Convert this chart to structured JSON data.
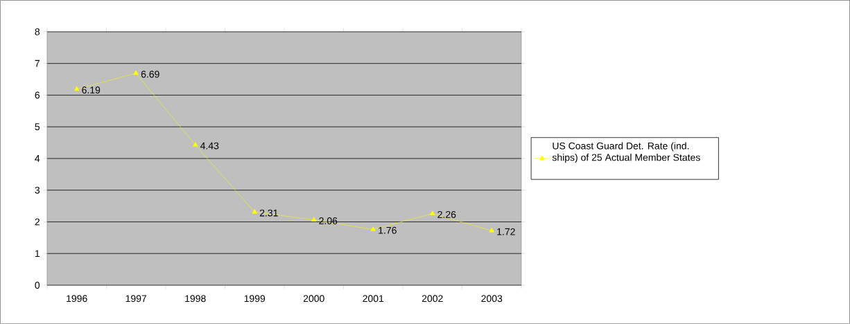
{
  "chart_data": {
    "type": "line",
    "categories": [
      "1996",
      "1997",
      "1998",
      "1999",
      "2000",
      "2001",
      "2002",
      "2003"
    ],
    "series": [
      {
        "name": "US Coast Guard Det. Rate (ind. ships) of 25 Actual Member States",
        "color": "#ffff00",
        "values": [
          6.19,
          6.69,
          4.43,
          2.31,
          2.06,
          1.76,
          2.26,
          1.72
        ]
      }
    ],
    "ylim": [
      0,
      8
    ],
    "yticks": [
      0,
      1,
      2,
      3,
      4,
      5,
      6,
      7,
      8
    ],
    "grid": "y",
    "legend": "right",
    "marker": "triangle",
    "line_style": "solid",
    "data_labels": true
  }
}
